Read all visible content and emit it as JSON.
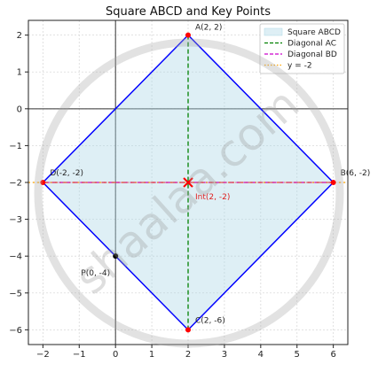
{
  "chart_data": {
    "type": "line",
    "title": "Square ABCD and Key Points",
    "xlabel": "",
    "ylabel": "",
    "xlim": [
      -2.4,
      6.4
    ],
    "ylim": [
      -6.4,
      2.4
    ],
    "xticks": [
      -2,
      -1,
      0,
      1,
      2,
      3,
      4,
      5,
      6
    ],
    "yticks": [
      -6,
      -5,
      -4,
      -3,
      -2,
      -1,
      0,
      1,
      2
    ],
    "grid": true,
    "legend_position": "top-right",
    "legend": [
      {
        "label": "Square ABCD",
        "style": "fill",
        "color": "#add8e6"
      },
      {
        "label": "Diagonal AC",
        "style": "dashed",
        "color": "#008000"
      },
      {
        "label": "Diagonal BD",
        "style": "dashed",
        "color": "#cc00cc"
      },
      {
        "label": "y = -2",
        "style": "dotted",
        "color": "#ffa500"
      }
    ],
    "square": {
      "vertices": [
        [
          2,
          2
        ],
        [
          6,
          -2
        ],
        [
          2,
          -6
        ],
        [
          -2,
          -2
        ]
      ],
      "edge_color": "#0000ff",
      "fill_color": "#add8e6"
    },
    "diagonals": [
      {
        "name": "Diagonal AC",
        "from": [
          2,
          2
        ],
        "to": [
          2,
          -6
        ],
        "color": "#008000"
      },
      {
        "name": "Diagonal BD",
        "from": [
          6,
          -2
        ],
        "to": [
          -2,
          -2
        ],
        "color": "#cc00cc"
      }
    ],
    "horizontal_line": {
      "y": -2,
      "color": "#ffa500"
    },
    "points": [
      {
        "label": "A(2, 2)",
        "x": 2,
        "y": 2,
        "color": "#ff0000",
        "marker": "circle"
      },
      {
        "label": "B(6, -2)",
        "x": 6,
        "y": -2,
        "color": "#ff0000",
        "marker": "circle"
      },
      {
        "label": "C(2, -6)",
        "x": 2,
        "y": -6,
        "color": "#ff0000",
        "marker": "circle"
      },
      {
        "label": "D(-2, -2)",
        "x": -2,
        "y": -2,
        "color": "#ff0000",
        "marker": "circle"
      },
      {
        "label": "P(0, -4)",
        "x": 0,
        "y": -4,
        "color": "#000000",
        "marker": "circle"
      },
      {
        "label": "Int(2, -2)",
        "x": 2,
        "y": -2,
        "color": "#ff0000",
        "marker": "cross"
      }
    ],
    "watermark": "shaalaa.com"
  }
}
